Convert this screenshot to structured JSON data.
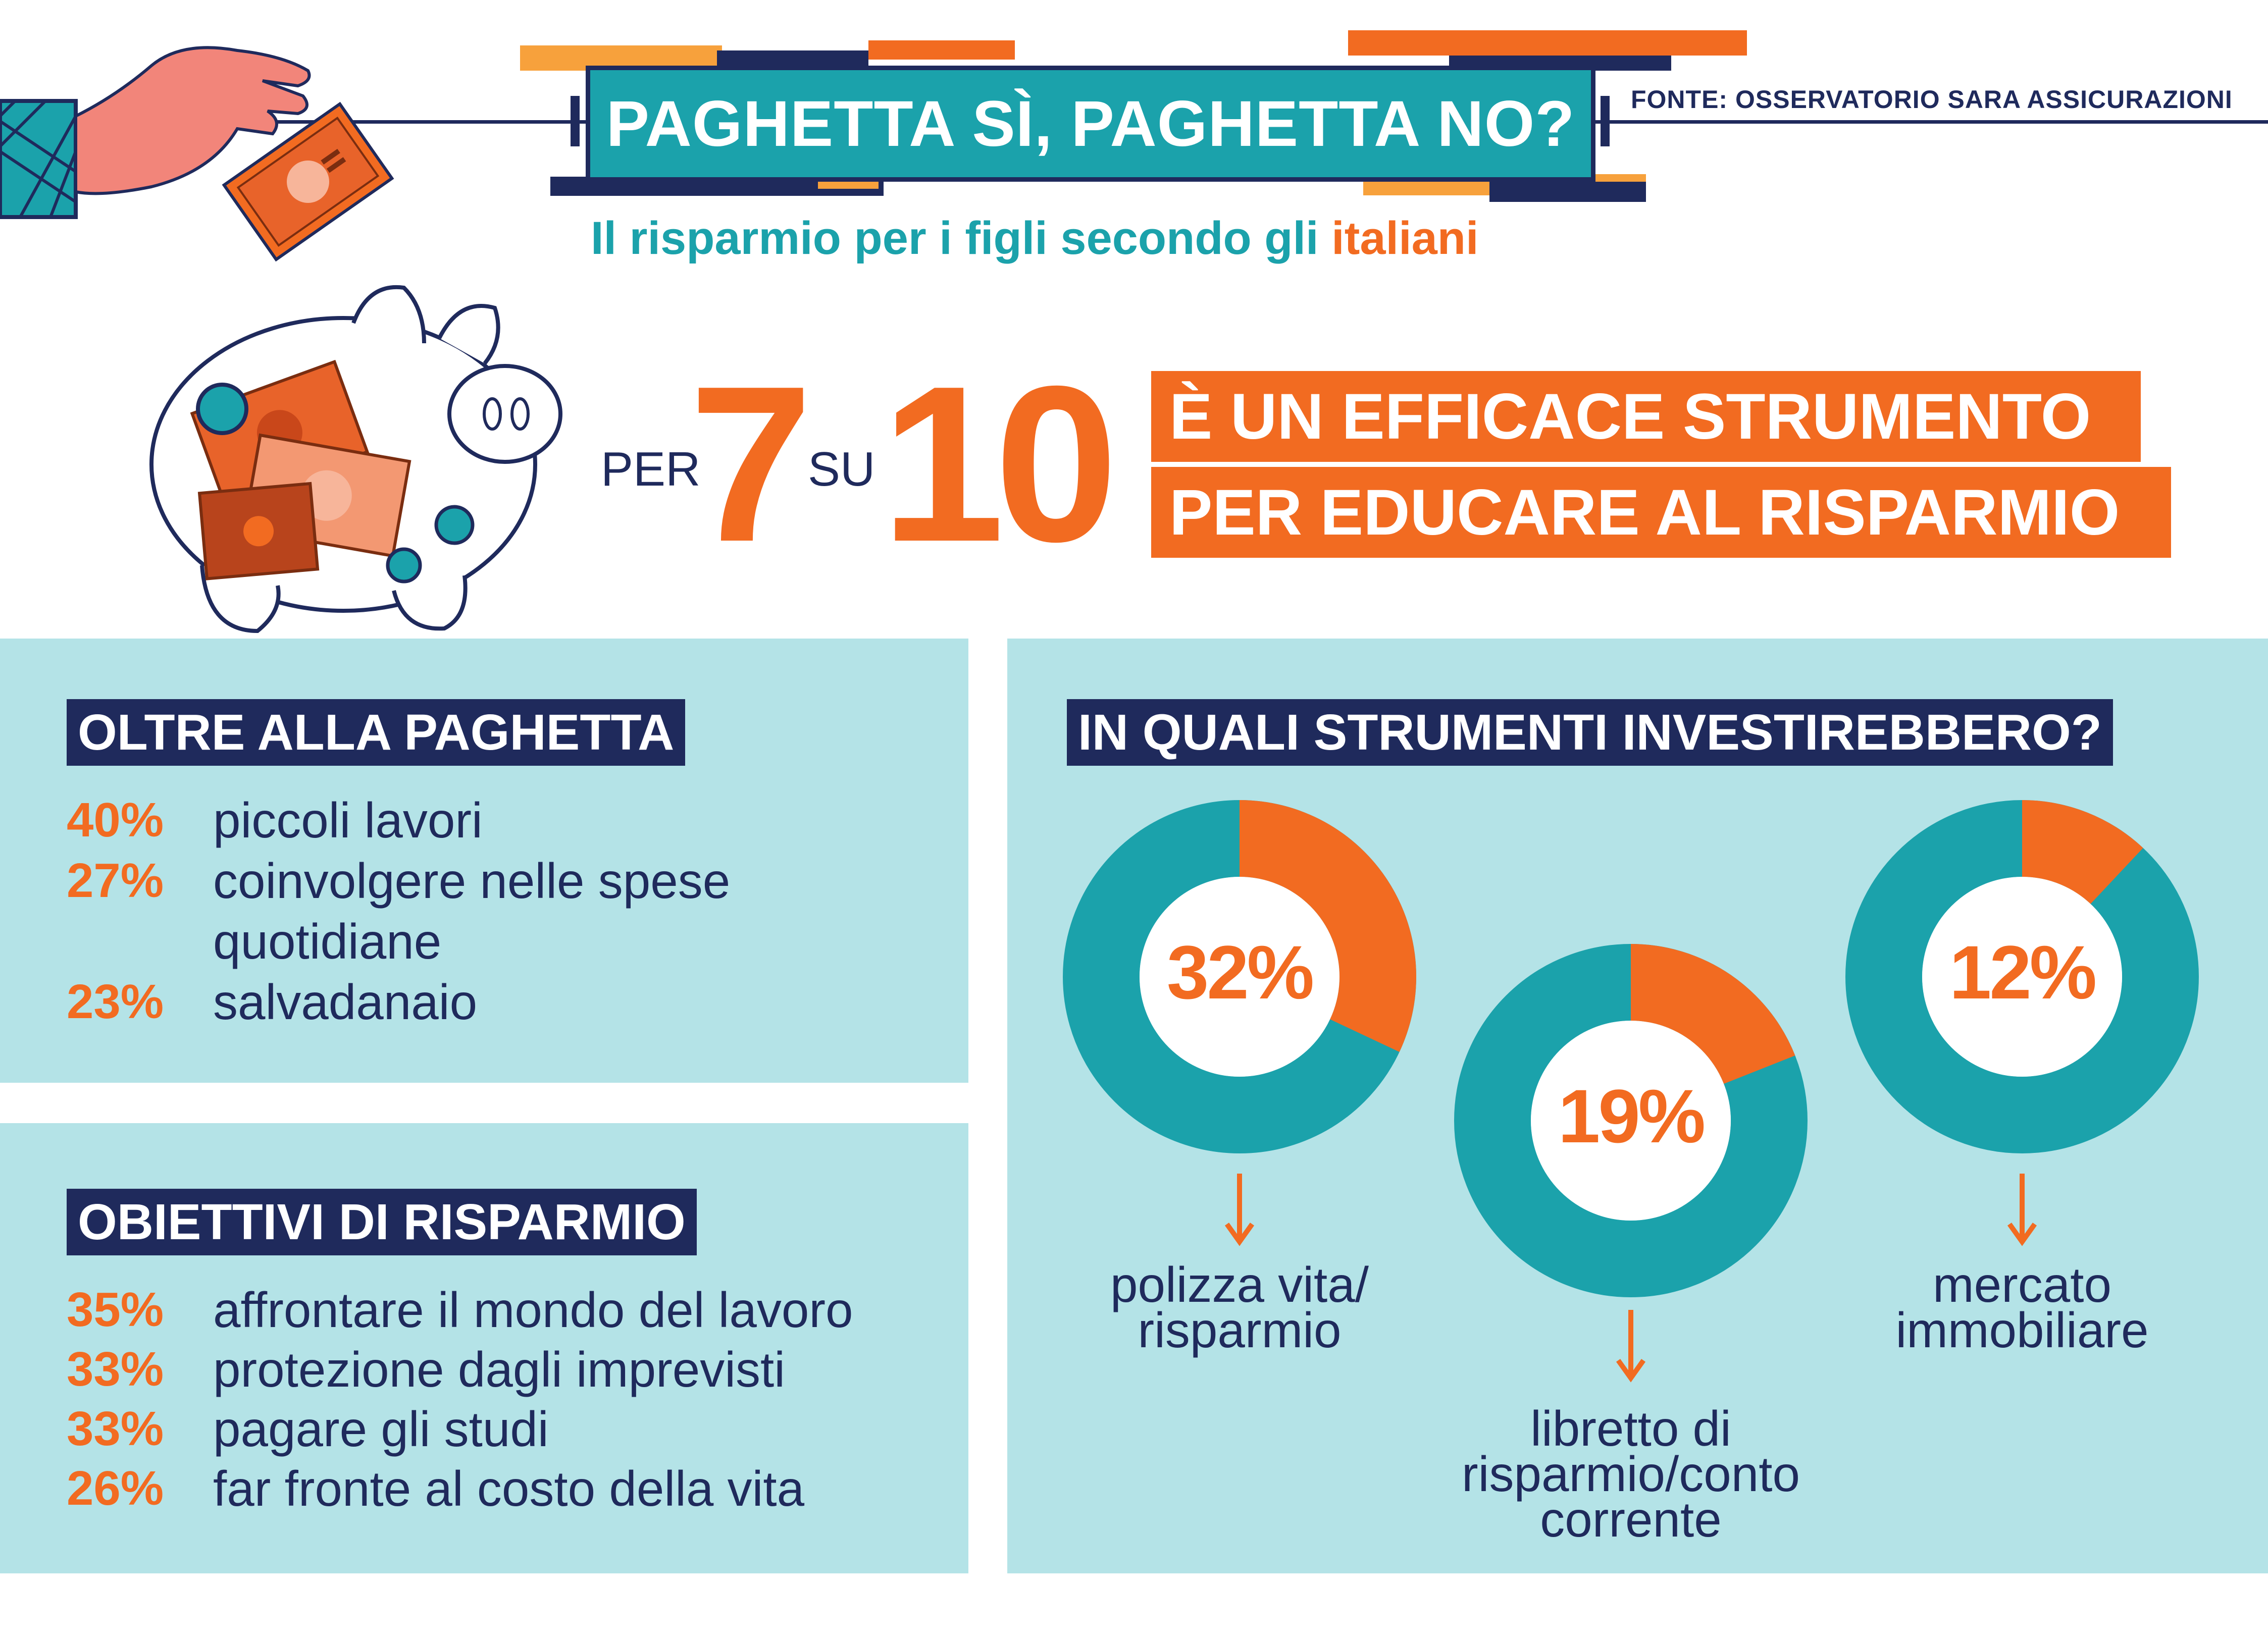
{
  "header": {
    "title": "PAGHETTA SÌ, PAGHETTA NO?",
    "source": "FONTE: OSSERVATORIO SARA ASSICURAZIONI",
    "subtitle_main": "Il risparmio per i figli secondo gli ",
    "subtitle_highlight": "italiani"
  },
  "headline": {
    "per": "PER",
    "num_a": "7",
    "su": "SU",
    "num_b": "10",
    "line1": "È UN EFFICACE STRUMENTO",
    "line2": "PER EDUCARE AL RISPARMIO"
  },
  "oltre": {
    "heading": "OLTRE ALLA PAGHETTA",
    "items": [
      {
        "pct": "40%",
        "label": "piccoli lavori"
      },
      {
        "pct": "27%",
        "label": "coinvolgere nelle spese quotidiane"
      },
      {
        "pct": "23%",
        "label": "salvadanaio"
      }
    ]
  },
  "obiettivi": {
    "heading": "OBIETTIVI DI RISPARMIO",
    "items": [
      {
        "pct": "35%",
        "label": "affrontare il mondo del lavoro"
      },
      {
        "pct": "33%",
        "label": "protezione dagli imprevisti"
      },
      {
        "pct": "33%",
        "label": "pagare gli studi"
      },
      {
        "pct": "26%",
        "label": "far fronte al costo della vita"
      }
    ]
  },
  "strumenti": {
    "heading": "IN QUALI STRUMENTI INVESTIREBBERO?"
  },
  "colors": {
    "orange": "#f26b21",
    "teal": "#1ba2ab",
    "navy": "#1f2a5c",
    "panel": "#b4e3e7"
  },
  "chart_data": {
    "type": "pie",
    "title": "IN QUALI STRUMENTI INVESTIREBBERO?",
    "series": [
      {
        "name": "polizza vita/ risparmio",
        "value": 32,
        "label": "32%",
        "display_lines": [
          "polizza vita/",
          "risparmio"
        ]
      },
      {
        "name": "libretto di risparmio/conto corrente",
        "value": 19,
        "label": "19%",
        "display_lines": [
          "libretto di",
          "risparmio/conto",
          "corrente"
        ]
      },
      {
        "name": "mercato immobiliare",
        "value": 12,
        "label": "12%",
        "display_lines": [
          "mercato",
          "immobiliare"
        ]
      }
    ]
  }
}
